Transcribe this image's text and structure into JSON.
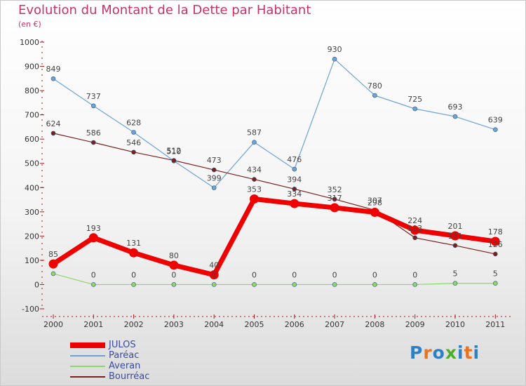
{
  "title": "Evolution du Montant de la Dette par Habitant",
  "unit_label": "(en €)",
  "brand": {
    "letters": [
      "P",
      "r",
      "o",
      "x",
      "i",
      "t",
      "i"
    ],
    "colors": [
      "#2e7fc4",
      "#e8741f",
      "#2e7fc4",
      "#4caf2b",
      "#2e7fc4",
      "#e8741f",
      "#2e7fc4"
    ]
  },
  "chart_data": {
    "type": "line",
    "title": "Evolution du Montant de la Dette par Habitant",
    "ylabel": "(en €)",
    "xlabel": "",
    "x": [
      "2000",
      "2001",
      "2002",
      "2003",
      "2004",
      "2005",
      "2006",
      "2007",
      "2008",
      "2009",
      "2010",
      "2011"
    ],
    "yticks": [
      -100,
      0,
      100,
      200,
      300,
      400,
      500,
      600,
      700,
      800,
      900,
      1000
    ],
    "ylim": [
      -100,
      1000
    ],
    "grid": false,
    "legend_position": "bottom-left",
    "series": [
      {
        "name": "JULOS",
        "color": "#ee0000",
        "values": [
          85,
          193,
          131,
          80,
          40,
          353,
          334,
          317,
          298,
          224,
          201,
          178
        ],
        "labels": [
          "85",
          "193",
          "131",
          "80",
          "40",
          "353",
          "334",
          "317",
          "298",
          "224",
          "201",
          "178"
        ]
      },
      {
        "name": "Paréac",
        "color": "#6fa3d6",
        "values": [
          849,
          737,
          628,
          510,
          399,
          587,
          476,
          930,
          780,
          725,
          693,
          639
        ],
        "labels": [
          "849",
          "737",
          "628",
          "510",
          "399",
          "587",
          "476",
          "930",
          "780",
          "725",
          "693",
          "639"
        ]
      },
      {
        "name": "Averan",
        "color": "#8ed66a",
        "values": [
          45,
          0,
          0,
          0,
          0,
          0,
          0,
          0,
          0,
          0,
          5,
          5
        ],
        "labels": [
          "",
          "0",
          "0",
          "0",
          "0",
          "0",
          "0",
          "0",
          "0",
          "0",
          "5",
          "5"
        ]
      },
      {
        "name": "Bourréac",
        "color": "#7a2020",
        "values": [
          624,
          586,
          546,
          512,
          473,
          434,
          394,
          352,
          307,
          193,
          161,
          126
        ],
        "labels": [
          "624",
          "586",
          "546",
          "512",
          "473",
          "434",
          "394",
          "352",
          "307",
          "193",
          "161",
          "126"
        ]
      }
    ]
  }
}
